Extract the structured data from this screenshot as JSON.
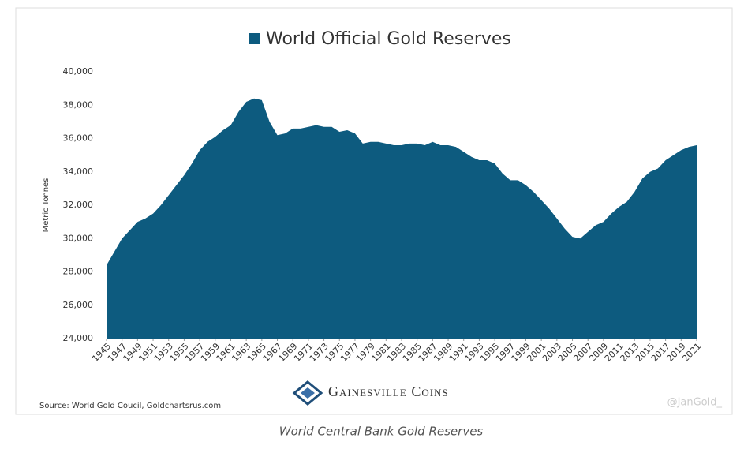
{
  "chart_data": {
    "type": "area",
    "title": "World Official Gold Reserves",
    "legend": "top",
    "color": "#0d5b7f",
    "y_label": "Metric Tonnes",
    "source": "Source: World Gold Coucil, Goldchartsrus.com",
    "x": [
      1945,
      1946,
      1947,
      1948,
      1949,
      1950,
      1951,
      1952,
      1953,
      1954,
      1955,
      1956,
      1957,
      1958,
      1959,
      1960,
      1961,
      1962,
      1963,
      1964,
      1965,
      1966,
      1967,
      1968,
      1969,
      1970,
      1971,
      1972,
      1973,
      1974,
      1975,
      1976,
      1977,
      1978,
      1979,
      1980,
      1981,
      1982,
      1983,
      1984,
      1985,
      1986,
      1987,
      1988,
      1989,
      1990,
      1991,
      1992,
      1993,
      1994,
      1995,
      1996,
      1997,
      1998,
      1999,
      2000,
      2001,
      2002,
      2003,
      2004,
      2005,
      2006,
      2007,
      2008,
      2009,
      2010,
      2011,
      2012,
      2013,
      2014,
      2015,
      2016,
      2017,
      2018,
      2019,
      2020,
      2021
    ],
    "values": [
      28400,
      29200,
      30000,
      30500,
      31000,
      31200,
      31500,
      32000,
      32600,
      33200,
      33800,
      34500,
      35300,
      35800,
      36100,
      36500,
      36800,
      37600,
      38200,
      38400,
      38300,
      37000,
      36200,
      36300,
      36600,
      36600,
      36700,
      36800,
      36700,
      36700,
      36400,
      36500,
      36300,
      35700,
      35800,
      35800,
      35700,
      35600,
      35600,
      35700,
      35700,
      35600,
      35800,
      35600,
      35600,
      35500,
      35200,
      34900,
      34700,
      34700,
      34500,
      33900,
      33500,
      33500,
      33200,
      32800,
      32300,
      31800,
      31200,
      30600,
      30100,
      30000,
      30400,
      30800,
      31000,
      31500,
      31900,
      32200,
      32800,
      33600,
      34000,
      34200,
      34700,
      35000,
      35300,
      35500,
      35600
    ],
    "xlim": [
      1945,
      2021
    ],
    "xticks": [
      1945,
      1947,
      1949,
      1951,
      1953,
      1955,
      1957,
      1959,
      1961,
      1963,
      1965,
      1967,
      1969,
      1971,
      1973,
      1975,
      1977,
      1979,
      1981,
      1983,
      1985,
      1987,
      1989,
      1991,
      1993,
      1995,
      1997,
      1999,
      2001,
      2003,
      2005,
      2007,
      2009,
      2011,
      2013,
      2015,
      2017,
      2019,
      2021
    ],
    "ylim": [
      24000,
      40000
    ],
    "yticks": [
      {
        "value": 24000,
        "label": "24,000"
      },
      {
        "value": 26000,
        "label": "26,000"
      },
      {
        "value": 28000,
        "label": "28,000"
      },
      {
        "value": 30000,
        "label": "30,000"
      },
      {
        "value": 32000,
        "label": "32,000"
      },
      {
        "value": 34000,
        "label": "34,000"
      },
      {
        "value": 36000,
        "label": "36,000"
      },
      {
        "value": 38000,
        "label": "38,000"
      },
      {
        "value": 40000,
        "label": "40,000"
      }
    ],
    "grid": false
  },
  "logo": "Gainesville Coins",
  "watermark": "@JanGold_",
  "caption": "World Central Bank Gold Reserves"
}
